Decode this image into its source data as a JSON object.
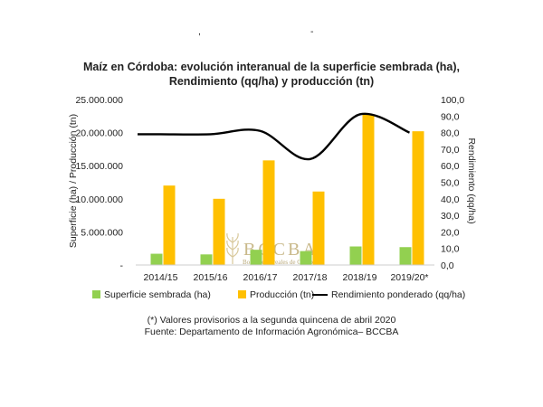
{
  "chart_data": {
    "type": "bar+line",
    "title_line1": "Maíz en Córdoba: evolución interanual de la superficie sembrada (ha),",
    "title_line2": "Rendimiento (qq/ha) y producción (tn)",
    "ylabel_left": "Superficie (ha) / Producción (tn)",
    "ylabel_right": "Rendimiento (qq/ha)",
    "categories": [
      "2014/15",
      "2015/16",
      "2016/17",
      "2017/18",
      "2018/19",
      "2019/20*"
    ],
    "ylim_left": [
      0,
      25000000
    ],
    "ylim_right": [
      0,
      100
    ],
    "left_ticks": [
      "-",
      "5.000.000",
      "10.000.000",
      "15.000.000",
      "20.000.000",
      "25.000.000"
    ],
    "right_ticks": [
      "0,0",
      "10,0",
      "20,0",
      "30,0",
      "40,0",
      "50,0",
      "60,0",
      "70,0",
      "80,0",
      "90,0",
      "100,0"
    ],
    "series": [
      {
        "name": "Superficie sembrada (ha)",
        "kind": "bar",
        "color": "#92d050",
        "values": [
          1700000,
          1600000,
          2300000,
          2100000,
          2800000,
          2700000
        ]
      },
      {
        "name": "Producción (tn)",
        "kind": "bar",
        "color": "#ffc000",
        "values": [
          12000000,
          10000000,
          15800000,
          11100000,
          22700000,
          20200000
        ]
      },
      {
        "name": "Rendimiento ponderado (qq/ha)",
        "kind": "line",
        "axis": "right",
        "color": "#000000",
        "values": [
          79,
          79,
          81,
          64,
          91,
          80
        ]
      }
    ],
    "legend_position": "bottom",
    "grid": false
  },
  "notes": {
    "line1": "(*) Valores provisorios a la segunda quincena de abril 2020",
    "line2": "Fuente: Departamento de Información Agronómica– BCCBA"
  },
  "watermark": {
    "text1": "BCCBA",
    "text2": "Bolsa de Cereales de Córdoba"
  }
}
